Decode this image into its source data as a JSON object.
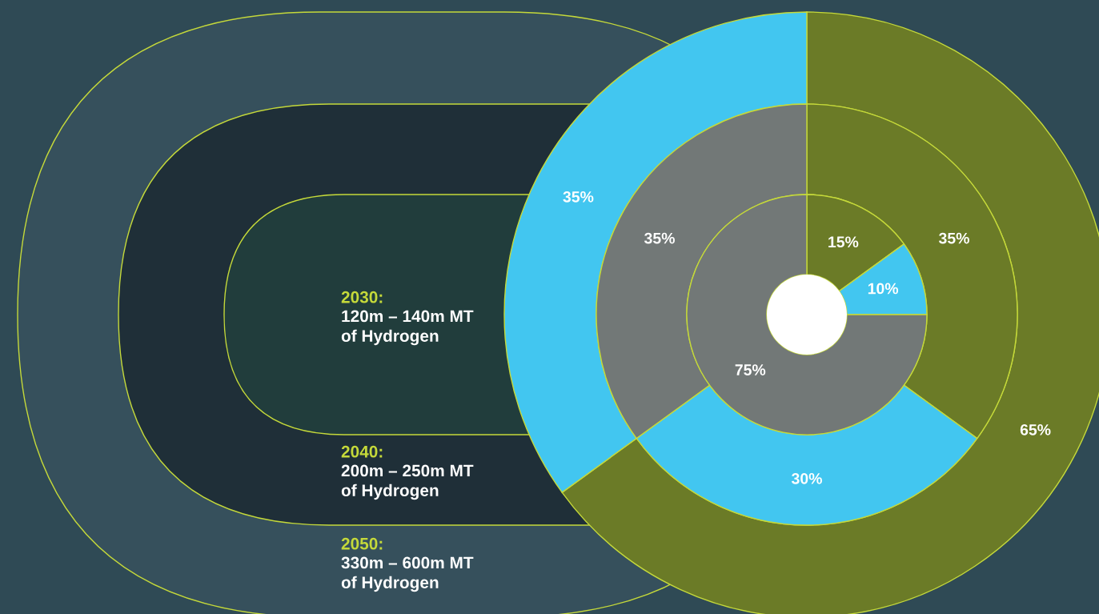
{
  "chart_data": {
    "type": "donut",
    "categories": [
      null,
      null,
      null
    ],
    "colors": [
      "#6b7b27",
      "#42c6f0",
      "#727877"
    ],
    "series": [
      {
        "values": [
          15,
          10,
          75
        ],
        "value_labels": [
          "15%",
          "10%",
          "75%"
        ]
      },
      {
        "values": [
          35,
          30,
          35
        ],
        "value_labels": [
          "35%",
          "30%",
          "35%"
        ]
      },
      {
        "values": [
          65,
          35,
          null
        ],
        "value_labels": [
          "65%",
          "35%",
          null
        ]
      }
    ],
    "annotations": [
      "2030:",
      "120m – 140m MT\nof Hydrogen",
      "2040:",
      "200m – 250m MT\nof Hydrogen",
      "2050:",
      "330m – 600m MT\nof Hydrogen"
    ]
  }
}
